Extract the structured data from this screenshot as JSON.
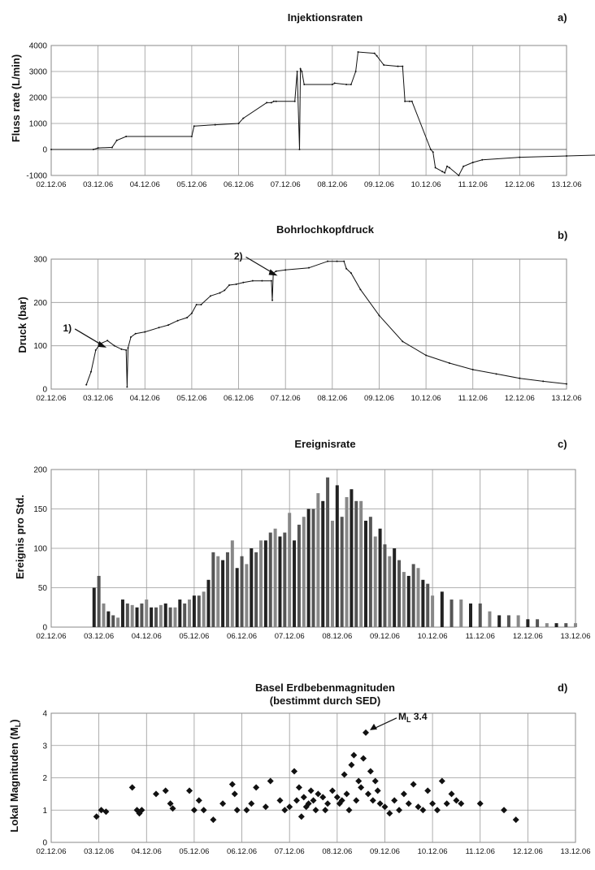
{
  "x_dates": [
    "02.12.06",
    "03.12.06",
    "04.12.06",
    "05.12.06",
    "06.12.06",
    "07.12.06",
    "08.12.06",
    "09.12.06",
    "10.12.06",
    "11.12.06",
    "12.12.06",
    "13.12.06"
  ],
  "chart_data": [
    {
      "type": "line",
      "title": "Injektionsraten",
      "panel_label": "a)",
      "ylabel": "Fluss rate (L/min)",
      "ylim": [
        -1000,
        4000
      ],
      "yticks": [
        "-1000",
        "0",
        "1000",
        "2000",
        "3000",
        "4000"
      ],
      "yticks_values": [
        -1000,
        0,
        1000,
        2000,
        3000,
        4000
      ],
      "grid": true,
      "xunit": "days after 02.12.06",
      "series": [
        {
          "x": [
            0,
            0.9,
            1.0,
            1.3,
            1.4,
            1.6,
            3.0,
            3.05,
            3.5,
            4.0,
            4.1,
            4.6,
            4.7,
            4.75,
            4.8,
            5.2,
            5.25,
            5.3,
            5.32,
            5.35,
            5.4,
            6.0,
            6.05,
            6.3,
            6.4,
            6.5,
            6.55,
            6.9,
            6.95,
            7.1,
            7.4,
            7.5,
            7.55,
            7.65,
            7.7,
            8.1,
            8.15,
            8.2,
            8.35,
            8.4,
            8.45,
            8.5,
            8.7,
            8.8,
            9.0,
            9.2,
            10.0,
            11.0,
            12.0,
            13.0
          ],
          "y": [
            0,
            0,
            60,
            80,
            350,
            500,
            500,
            900,
            950,
            1000,
            1200,
            1800,
            1800,
            1850,
            1850,
            1850,
            3000,
            0,
            3100,
            3000,
            2500,
            2500,
            2550,
            2500,
            2500,
            3000,
            3750,
            3700,
            3600,
            3250,
            3200,
            3200,
            1850,
            1850,
            1850,
            0,
            -100,
            -700,
            -850,
            -900,
            -650,
            -700,
            -1000,
            -650,
            -500,
            -400,
            -300,
            -250,
            -200,
            -100
          ]
        }
      ]
    },
    {
      "type": "line",
      "title": "Bohrlochkopfdruck",
      "panel_label": "b)",
      "ylabel": "Druck  (bar)",
      "ylim": [
        0,
        300
      ],
      "yticks": [
        "0",
        "100",
        "200",
        "300"
      ],
      "yticks_values": [
        0,
        100,
        200,
        300
      ],
      "grid": true,
      "xunit": "days after 02.12.06",
      "annotations": [
        {
          "text": "1)",
          "x": 1.2,
          "y": 92
        },
        {
          "text": "2)",
          "x": 4.85,
          "y": 258
        }
      ],
      "series": [
        {
          "x": [
            0.75,
            0.85,
            0.95,
            1.05,
            1.2,
            1.35,
            1.5,
            1.6,
            1.62,
            1.64,
            1.7,
            1.8,
            2.0,
            2.3,
            2.5,
            2.7,
            2.9,
            3.0,
            3.1,
            3.2,
            3.4,
            3.6,
            3.7,
            3.8,
            3.95,
            4.1,
            4.3,
            4.5,
            4.7,
            4.72,
            4.74,
            4.8,
            5.0,
            5.5,
            5.9,
            6.1,
            6.25,
            6.3,
            6.4,
            6.6,
            7.0,
            7.5,
            8.0,
            8.5,
            9.0,
            9.5,
            10.0,
            10.5,
            11.0
          ],
          "y": [
            10,
            40,
            90,
            105,
            112,
            100,
            92,
            90,
            5,
            95,
            120,
            128,
            132,
            142,
            148,
            158,
            165,
            175,
            195,
            195,
            215,
            222,
            228,
            240,
            242,
            246,
            250,
            250,
            250,
            205,
            268,
            272,
            275,
            280,
            295,
            295,
            295,
            278,
            268,
            230,
            170,
            110,
            78,
            60,
            45,
            35,
            25,
            18,
            12
          ]
        }
      ]
    },
    {
      "type": "bar",
      "title": "Ereignisrate",
      "panel_label": "c)",
      "ylabel": "Ereignis pro Std.",
      "ylim": [
        0,
        200
      ],
      "yticks": [
        "0",
        "50",
        "100",
        "150",
        "200"
      ],
      "yticks_values": [
        0,
        50,
        100,
        150,
        200
      ],
      "grid": true,
      "xunit": "days after 02.12.06",
      "series": [
        {
          "x": [
            0.9,
            1.0,
            1.1,
            1.2,
            1.3,
            1.4,
            1.5,
            1.6,
            1.7,
            1.8,
            1.9,
            2.0,
            2.1,
            2.2,
            2.3,
            2.4,
            2.5,
            2.6,
            2.7,
            2.8,
            2.9,
            3.0,
            3.1,
            3.2,
            3.3,
            3.4,
            3.5,
            3.6,
            3.7,
            3.8,
            3.9,
            4.0,
            4.1,
            4.2,
            4.3,
            4.4,
            4.5,
            4.6,
            4.7,
            4.8,
            4.9,
            5.0,
            5.1,
            5.2,
            5.3,
            5.4,
            5.5,
            5.6,
            5.7,
            5.8,
            5.9,
            6.0,
            6.1,
            6.2,
            6.3,
            6.4,
            6.5,
            6.6,
            6.7,
            6.8,
            6.9,
            7.0,
            7.1,
            7.2,
            7.3,
            7.4,
            7.5,
            7.6,
            7.7,
            7.8,
            7.9,
            8.0,
            8.2,
            8.4,
            8.6,
            8.8,
            9.0,
            9.2,
            9.4,
            9.6,
            9.8,
            10.0,
            10.2,
            10.4,
            10.6,
            10.8,
            11.0
          ],
          "y": [
            50,
            65,
            30,
            20,
            15,
            12,
            35,
            30,
            28,
            25,
            30,
            35,
            25,
            25,
            28,
            30,
            25,
            25,
            35,
            30,
            35,
            40,
            40,
            45,
            60,
            95,
            90,
            85,
            95,
            110,
            75,
            90,
            80,
            100,
            95,
            110,
            110,
            120,
            125,
            115,
            120,
            145,
            110,
            130,
            140,
            150,
            150,
            170,
            160,
            190,
            135,
            180,
            140,
            165,
            175,
            160,
            160,
            135,
            140,
            115,
            125,
            105,
            90,
            100,
            85,
            70,
            65,
            80,
            75,
            60,
            55,
            40,
            45,
            35,
            35,
            30,
            30,
            20,
            15,
            15,
            15,
            10,
            10,
            5,
            5,
            5,
            5
          ]
        }
      ]
    },
    {
      "type": "scatter",
      "title": "Basel Erdbebenmagnituden",
      "subtitle": "(bestimmt durch SED)",
      "panel_label": "d)",
      "ylabel": "Lokal Magnituden (ML)",
      "ylim": [
        0,
        4
      ],
      "yticks": [
        "0",
        "1",
        "2",
        "3",
        "4"
      ],
      "yticks_values": [
        0,
        1,
        2,
        3,
        4
      ],
      "grid": true,
      "xunit": "days after 02.12.06",
      "annotations": [
        {
          "text": "ML 3.4",
          "x": 6.6,
          "y": 3.4
        }
      ],
      "series": [
        {
          "x": [
            0.95,
            1.05,
            1.15,
            1.7,
            1.8,
            1.85,
            1.9,
            2.2,
            2.4,
            2.5,
            2.55,
            2.9,
            3.0,
            3.1,
            3.2,
            3.4,
            3.6,
            3.8,
            3.85,
            3.9,
            4.1,
            4.2,
            4.3,
            4.5,
            4.6,
            4.8,
            4.9,
            5.0,
            5.1,
            5.15,
            5.2,
            5.25,
            5.3,
            5.35,
            5.4,
            5.45,
            5.5,
            5.55,
            5.6,
            5.7,
            5.75,
            5.8,
            5.9,
            6.0,
            6.05,
            6.1,
            6.15,
            6.2,
            6.25,
            6.3,
            6.35,
            6.4,
            6.45,
            6.5,
            6.55,
            6.6,
            6.65,
            6.7,
            6.75,
            6.8,
            6.85,
            6.9,
            7.0,
            7.1,
            7.2,
            7.3,
            7.4,
            7.5,
            7.6,
            7.7,
            7.8,
            7.9,
            8.0,
            8.1,
            8.2,
            8.3,
            8.4,
            8.5,
            8.6,
            9.0,
            9.5,
            9.75
          ],
          "y": [
            0.8,
            1.0,
            0.95,
            1.7,
            1.0,
            0.9,
            1.0,
            1.5,
            1.6,
            1.2,
            1.05,
            1.6,
            1.0,
            1.3,
            1.0,
            0.7,
            1.2,
            1.8,
            1.5,
            1.0,
            1.0,
            1.2,
            1.7,
            1.1,
            1.9,
            1.3,
            1.0,
            1.1,
            2.2,
            1.3,
            1.7,
            0.8,
            1.4,
            1.1,
            1.2,
            1.6,
            1.3,
            1.0,
            1.5,
            1.4,
            1.0,
            1.2,
            1.6,
            1.4,
            1.2,
            1.3,
            2.1,
            1.5,
            1.0,
            2.4,
            2.7,
            1.3,
            1.9,
            1.7,
            2.6,
            3.4,
            1.5,
            2.2,
            1.3,
            1.9,
            1.6,
            1.2,
            1.1,
            0.9,
            1.3,
            1.0,
            1.5,
            1.2,
            1.8,
            1.1,
            1.0,
            1.6,
            1.2,
            1.0,
            1.9,
            1.2,
            1.5,
            1.3,
            1.2,
            1.2,
            1.0,
            0.7
          ]
        }
      ]
    }
  ]
}
